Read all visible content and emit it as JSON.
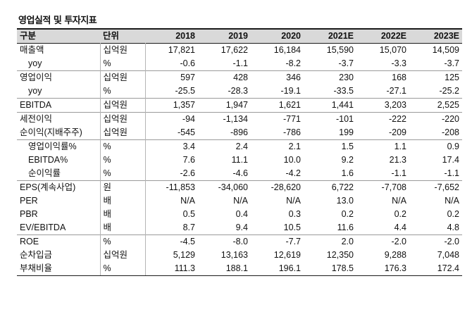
{
  "title": "영업실적 및 투자지표",
  "header": [
    "구분",
    "단위",
    "2018",
    "2019",
    "2020",
    "2021E",
    "2022E",
    "2023E"
  ],
  "rows": [
    {
      "label": "매출액",
      "unit": "십억원",
      "v": [
        "17,821",
        "17,622",
        "16,184",
        "15,590",
        "15,070",
        "14,509"
      ]
    },
    {
      "label": "yoy",
      "unit": "%",
      "v": [
        "-0.6",
        "-1.1",
        "-8.2",
        "-3.7",
        "-3.3",
        "-3.7"
      ]
    },
    {
      "label": "영업이익",
      "unit": "십억원",
      "v": [
        "597",
        "428",
        "346",
        "230",
        "168",
        "125"
      ]
    },
    {
      "label": "yoy",
      "unit": "%",
      "v": [
        "-25.5",
        "-28.3",
        "-19.1",
        "-33.5",
        "-27.1",
        "-25.2"
      ]
    },
    {
      "label": "EBITDA",
      "unit": "십억원",
      "v": [
        "1,357",
        "1,947",
        "1,621",
        "1,441",
        "3,203",
        "2,525"
      ]
    },
    {
      "label": "세전이익",
      "unit": "십억원",
      "v": [
        "-94",
        "-1,134",
        "-771",
        "-101",
        "-222",
        "-220"
      ]
    },
    {
      "label": "순이익(지배주주)",
      "unit": "십억원",
      "v": [
        "-545",
        "-896",
        "-786",
        "199",
        "-209",
        "-208"
      ]
    },
    {
      "label": "영업이익률%",
      "unit": "%",
      "v": [
        "3.4",
        "2.4",
        "2.1",
        "1.5",
        "1.1",
        "0.9"
      ]
    },
    {
      "label": "EBITDA%",
      "unit": "%",
      "v": [
        "7.6",
        "11.1",
        "10.0",
        "9.2",
        "21.3",
        "17.4"
      ]
    },
    {
      "label": "순이익률",
      "unit": "%",
      "v": [
        "-2.6",
        "-4.6",
        "-4.2",
        "1.6",
        "-1.1",
        "-1.1"
      ]
    },
    {
      "label": "EPS(계속사업)",
      "unit": "원",
      "v": [
        "-11,853",
        "-34,060",
        "-28,620",
        "6,722",
        "-7,708",
        "-7,652"
      ]
    },
    {
      "label": "PER",
      "unit": "배",
      "v": [
        "N/A",
        "N/A",
        "N/A",
        "13.0",
        "N/A",
        "N/A"
      ]
    },
    {
      "label": "PBR",
      "unit": "배",
      "v": [
        "0.5",
        "0.4",
        "0.3",
        "0.2",
        "0.2",
        "0.2"
      ]
    },
    {
      "label": "EV/EBITDA",
      "unit": "배",
      "v": [
        "8.7",
        "9.4",
        "10.5",
        "11.6",
        "4.4",
        "4.8"
      ]
    },
    {
      "label": "ROE",
      "unit": "%",
      "v": [
        "-4.5",
        "-8.0",
        "-7.7",
        "2.0",
        "-2.0",
        "-2.0"
      ]
    },
    {
      "label": "순차입금",
      "unit": "십억원",
      "v": [
        "5,129",
        "13,163",
        "12,619",
        "12,350",
        "9,288",
        "7,048"
      ]
    },
    {
      "label": "부채비율",
      "unit": "%",
      "v": [
        "111.3",
        "188.1",
        "196.1",
        "178.5",
        "176.3",
        "172.4"
      ]
    }
  ]
}
